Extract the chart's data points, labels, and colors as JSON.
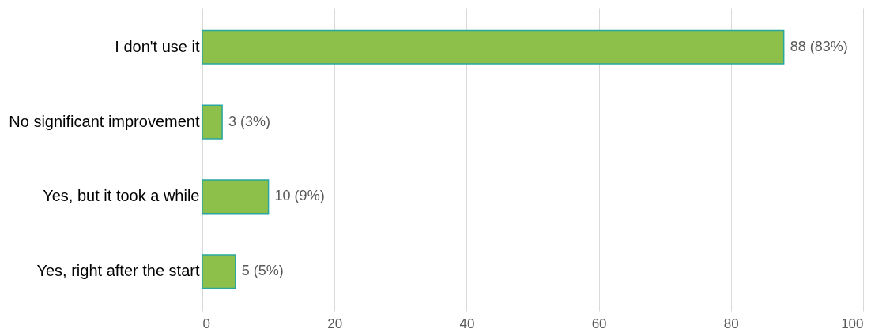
{
  "chart_data": {
    "type": "bar",
    "orientation": "horizontal",
    "categories": [
      "I don't use it",
      "No significant improvement",
      "Yes, but it took a while",
      "Yes, right after the start"
    ],
    "values": [
      88,
      3,
      10,
      5
    ],
    "value_labels": [
      "88 (83%)",
      "3 (3%)",
      "10 (9%)",
      "5 (5%)"
    ],
    "color": "#8cc04b",
    "xlim": [
      0,
      100
    ],
    "xticks": [
      0,
      20,
      40,
      60,
      80,
      100
    ],
    "grid": "x"
  }
}
